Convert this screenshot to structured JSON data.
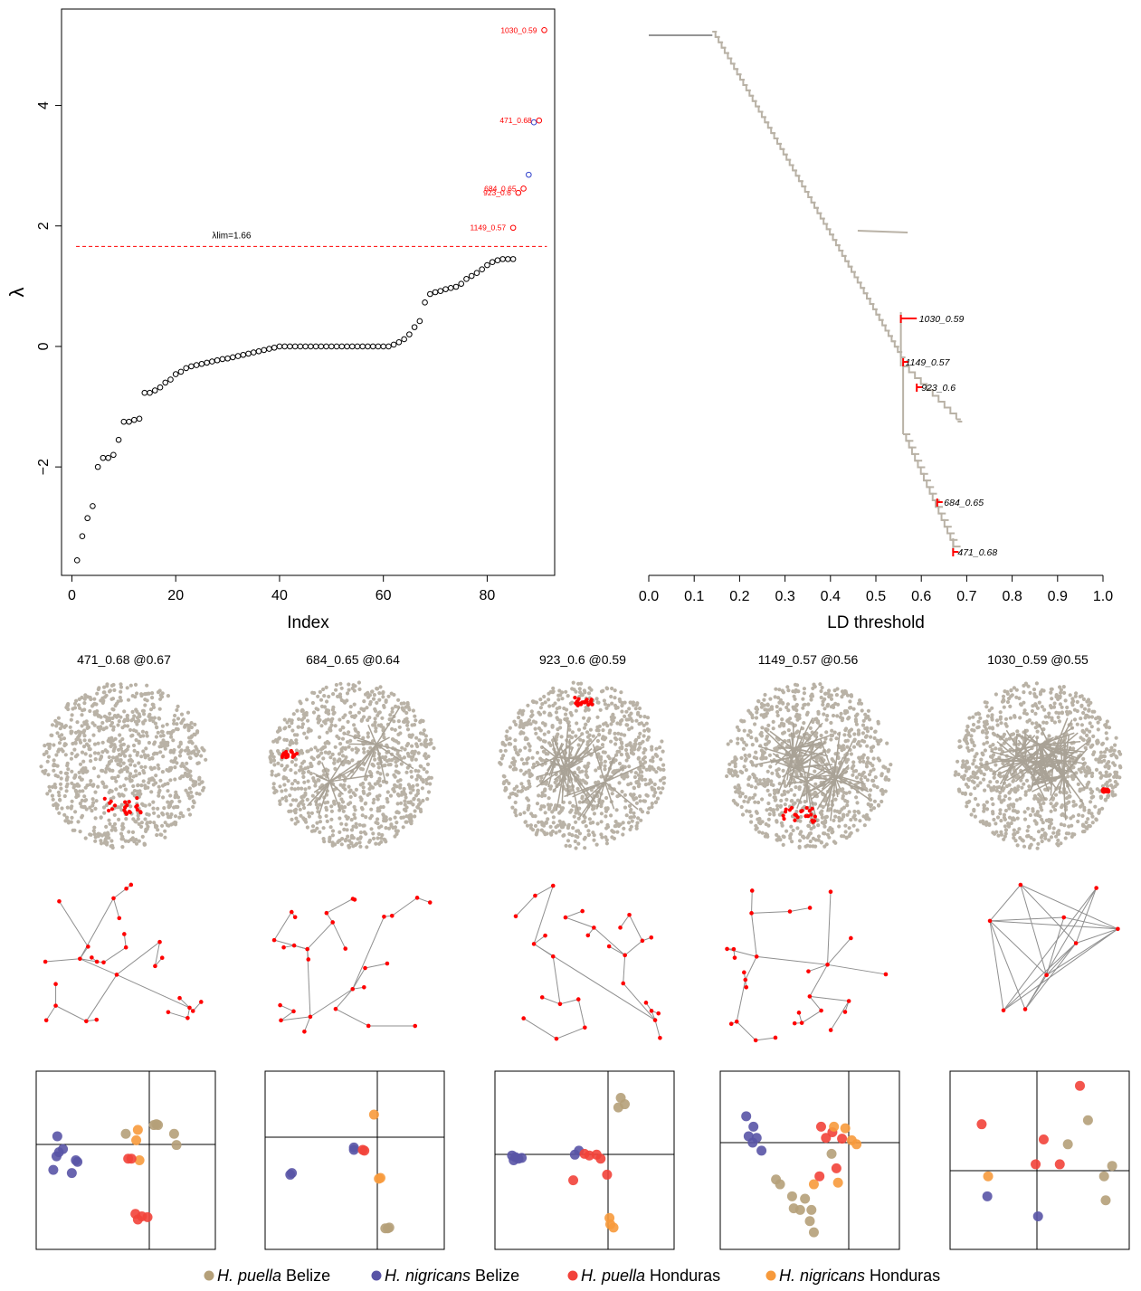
{
  "colors": {
    "point": "#000000",
    "highlight": "#ff0000",
    "secondary": "#3344cc",
    "tree": "#b9b2a6",
    "edge": "#8f8f8f",
    "puella_belize": "#b5a079",
    "nigricans_belize": "#5954a6",
    "puella_honduras": "#f2423a",
    "nigricans_honduras": "#f79a3c"
  },
  "legend": [
    {
      "species": "H. puella",
      "location": "Belize",
      "color_key": "puella_belize"
    },
    {
      "species": "H. nigricans",
      "location": "Belize",
      "color_key": "nigricans_belize"
    },
    {
      "species": "H. puella",
      "location": "Honduras",
      "color_key": "puella_honduras"
    },
    {
      "species": "H. nigricans",
      "location": "Honduras",
      "color_key": "nigricans_honduras"
    }
  ],
  "chart_data": [
    {
      "type": "scatter",
      "title": "",
      "xlabel": "Index",
      "ylabel": "λ",
      "xlim": [
        -2,
        93
      ],
      "ylim": [
        -3.8,
        5.6
      ],
      "xticks": [
        0,
        20,
        40,
        60,
        80
      ],
      "yticks": [
        -2,
        0,
        2,
        4
      ],
      "grid": false,
      "threshold": {
        "value": 1.66,
        "label": "λlim=1.66"
      },
      "values": [
        -3.55,
        -3.15,
        -2.85,
        -2.65,
        -2.0,
        -1.85,
        -1.85,
        -1.8,
        -1.55,
        -1.25,
        -1.25,
        -1.22,
        -1.2,
        -0.77,
        -0.77,
        -0.73,
        -0.68,
        -0.6,
        -0.55,
        -0.46,
        -0.42,
        -0.36,
        -0.33,
        -0.31,
        -0.29,
        -0.27,
        -0.25,
        -0.23,
        -0.21,
        -0.2,
        -0.18,
        -0.16,
        -0.14,
        -0.12,
        -0.1,
        -0.08,
        -0.06,
        -0.04,
        -0.02,
        0,
        0,
        0,
        0,
        0,
        0,
        0,
        0,
        0,
        0,
        0,
        0,
        0,
        0,
        0,
        0,
        0,
        0,
        0,
        0,
        0,
        0,
        0.03,
        0.07,
        0.12,
        0.2,
        0.32,
        0.42,
        0.73,
        0.87,
        0.9,
        0.92,
        0.95,
        0.97,
        0.99,
        1.04,
        1.12,
        1.17,
        1.22,
        1.28,
        1.35,
        1.4,
        1.43,
        1.45,
        1.45,
        1.45
      ],
      "labeled_points": [
        {
          "x": 85,
          "y": 1.97,
          "label": "1149_0.57"
        },
        {
          "x": 86,
          "y": 2.55,
          "label": "923_0.6"
        },
        {
          "x": 87,
          "y": 2.62,
          "label": "684_0.65"
        },
        {
          "x": 88,
          "y": 2.85,
          "label": ""
        },
        {
          "x": 89,
          "y": 3.72,
          "label": ""
        },
        {
          "x": 90,
          "y": 3.75,
          "label": "471_0.68"
        },
        {
          "x": 91,
          "y": 5.25,
          "label": "1030_0.59"
        }
      ]
    },
    {
      "type": "line",
      "title": "",
      "xlabel": "LD threshold",
      "ylabel": "",
      "xlim": [
        0,
        1
      ],
      "xticks": [
        "0.0",
        "0.1",
        "0.2",
        "0.3",
        "0.4",
        "0.5",
        "0.6",
        "0.7",
        "0.8",
        "0.9",
        "1.0"
      ],
      "grid": false,
      "trunk": {
        "start_x": 0.0,
        "split_x": 0.14,
        "end_x": 0.555
      },
      "branches": [
        {
          "x": 0.46,
          "end_x": 0.57,
          "label": ""
        },
        {
          "x": 0.555,
          "end_x": 0.59,
          "label": "1030_0.59",
          "highlight": true
        },
        {
          "x": 0.56,
          "end_x": 0.57,
          "label": "1149_0.57",
          "highlight": true
        },
        {
          "x": 0.59,
          "end_x": 0.6,
          "label": "923_0.6",
          "highlight": true
        },
        {
          "x": 0.635,
          "end_x": 0.65,
          "label": "684_0.65",
          "highlight": true
        },
        {
          "x": 0.67,
          "end_x": 0.68,
          "label": "471_0.68",
          "highlight": true
        }
      ]
    },
    {
      "type": "scatter",
      "panel_titles": [
        "471_0.68 @0.67",
        "684_0.65 @0.64",
        "923_0.6 @0.59",
        "1149_0.57 @0.56",
        "1030_0.59 @0.55"
      ],
      "pca_points": [
        [
          {
            "g": "nigricans_belize",
            "x": -0.85,
            "y": 0.3
          },
          {
            "g": "nigricans_belize",
            "x": -0.83,
            "y": 0.1
          },
          {
            "g": "nigricans_belize",
            "x": -0.86,
            "y": 0.05
          },
          {
            "g": "nigricans_belize",
            "x": -0.78,
            "y": 0.14
          },
          {
            "g": "nigricans_belize",
            "x": -0.9,
            "y": -0.12
          },
          {
            "g": "nigricans_belize",
            "x": -0.6,
            "y": -0.02
          },
          {
            "g": "nigricans_belize",
            "x": -0.62,
            "y": 0.0
          },
          {
            "g": "nigricans_belize",
            "x": -0.67,
            "y": -0.16
          },
          {
            "g": "puella_belize",
            "x": 0.35,
            "y": 0.44
          },
          {
            "g": "puella_belize",
            "x": 0.38,
            "y": 0.45
          },
          {
            "g": "puella_belize",
            "x": 0.4,
            "y": 0.44
          },
          {
            "g": "puella_belize",
            "x": 0.6,
            "y": 0.33
          },
          {
            "g": "puella_belize",
            "x": 0.63,
            "y": 0.19
          },
          {
            "g": "puella_belize",
            "x": 0.0,
            "y": 0.33
          },
          {
            "g": "nigricans_honduras",
            "x": 0.15,
            "y": 0.38
          },
          {
            "g": "nigricans_honduras",
            "x": 0.17,
            "y": 0.0
          },
          {
            "g": "nigricans_honduras",
            "x": 0.13,
            "y": 0.25
          },
          {
            "g": "puella_honduras",
            "x": 0.03,
            "y": 0.02
          },
          {
            "g": "puella_honduras",
            "x": 0.07,
            "y": 0.02
          },
          {
            "g": "puella_honduras",
            "x": 0.12,
            "y": -0.67
          },
          {
            "g": "puella_honduras",
            "x": 0.2,
            "y": -0.7
          },
          {
            "g": "puella_honduras",
            "x": 0.27,
            "y": -0.71
          },
          {
            "g": "puella_honduras",
            "x": 0.15,
            "y": -0.74
          }
        ],
        [
          {
            "g": "nigricans_belize",
            "x": -0.8,
            "y": -0.18
          },
          {
            "g": "nigricans_belize",
            "x": -0.78,
            "y": -0.16
          },
          {
            "g": "nigricans_belize",
            "x": -0.01,
            "y": 0.16
          },
          {
            "g": "nigricans_belize",
            "x": -0.01,
            "y": 0.13
          },
          {
            "g": "nigricans_honduras",
            "x": 0.24,
            "y": 0.57
          },
          {
            "g": "nigricans_honduras",
            "x": 0.32,
            "y": -0.22
          },
          {
            "g": "nigricans_honduras",
            "x": 0.3,
            "y": -0.23
          },
          {
            "g": "puella_honduras",
            "x": 0.1,
            "y": 0.13
          },
          {
            "g": "puella_honduras",
            "x": 0.12,
            "y": 0.12
          },
          {
            "g": "puella_belize",
            "x": 0.38,
            "y": -0.85
          },
          {
            "g": "puella_belize",
            "x": 0.43,
            "y": -0.84
          },
          {
            "g": "puella_belize",
            "x": 0.41,
            "y": -0.85
          }
        ],
        [
          {
            "g": "nigricans_belize",
            "x": -0.9,
            "y": 0.06
          },
          {
            "g": "nigricans_belize",
            "x": -0.86,
            "y": 0.04
          },
          {
            "g": "nigricans_belize",
            "x": -0.82,
            "y": 0.02
          },
          {
            "g": "nigricans_belize",
            "x": -0.78,
            "y": 0.03
          },
          {
            "g": "nigricans_belize",
            "x": -0.88,
            "y": 0.0
          },
          {
            "g": "nigricans_belize",
            "x": -0.07,
            "y": 0.12
          },
          {
            "g": "nigricans_belize",
            "x": -0.12,
            "y": 0.07
          },
          {
            "g": "puella_belize",
            "x": 0.45,
            "y": 0.78
          },
          {
            "g": "puella_belize",
            "x": 0.5,
            "y": 0.7
          },
          {
            "g": "puella_belize",
            "x": 0.42,
            "y": 0.66
          },
          {
            "g": "puella_honduras",
            "x": 0.0,
            "y": 0.08
          },
          {
            "g": "puella_honduras",
            "x": 0.06,
            "y": 0.06
          },
          {
            "g": "puella_honduras",
            "x": 0.15,
            "y": 0.07
          },
          {
            "g": "puella_honduras",
            "x": 0.2,
            "y": 0.02
          },
          {
            "g": "puella_honduras",
            "x": -0.14,
            "y": -0.25
          },
          {
            "g": "puella_honduras",
            "x": 0.28,
            "y": -0.18
          },
          {
            "g": "nigricans_honduras",
            "x": 0.31,
            "y": -0.72
          },
          {
            "g": "nigricans_honduras",
            "x": 0.36,
            "y": -0.84
          },
          {
            "g": "nigricans_honduras",
            "x": 0.32,
            "y": -0.8
          }
        ],
        [
          {
            "g": "nigricans_belize",
            "x": -0.79,
            "y": 0.55
          },
          {
            "g": "nigricans_belize",
            "x": -0.7,
            "y": 0.42
          },
          {
            "g": "nigricans_belize",
            "x": -0.76,
            "y": 0.3
          },
          {
            "g": "nigricans_belize",
            "x": -0.66,
            "y": 0.28
          },
          {
            "g": "nigricans_belize",
            "x": -0.71,
            "y": 0.22
          },
          {
            "g": "nigricans_belize",
            "x": -0.6,
            "y": 0.12
          },
          {
            "g": "puella_belize",
            "x": 0.27,
            "y": 0.08
          },
          {
            "g": "puella_belize",
            "x": -0.42,
            "y": -0.24
          },
          {
            "g": "puella_belize",
            "x": -0.37,
            "y": -0.3
          },
          {
            "g": "puella_belize",
            "x": -0.22,
            "y": -0.45
          },
          {
            "g": "puella_belize",
            "x": -0.2,
            "y": -0.6
          },
          {
            "g": "puella_belize",
            "x": -0.12,
            "y": -0.62
          },
          {
            "g": "puella_belize",
            "x": -0.06,
            "y": -0.48
          },
          {
            "g": "puella_belize",
            "x": 0.02,
            "y": -0.62
          },
          {
            "g": "puella_belize",
            "x": 0.0,
            "y": -0.76
          },
          {
            "g": "puella_belize",
            "x": 0.05,
            "y": -0.9
          },
          {
            "g": "puella_honduras",
            "x": 0.14,
            "y": 0.42
          },
          {
            "g": "puella_honduras",
            "x": 0.2,
            "y": 0.28
          },
          {
            "g": "puella_honduras",
            "x": 0.28,
            "y": 0.35
          },
          {
            "g": "puella_honduras",
            "x": 0.4,
            "y": 0.27
          },
          {
            "g": "puella_honduras",
            "x": 0.33,
            "y": -0.1
          },
          {
            "g": "puella_honduras",
            "x": 0.12,
            "y": -0.2
          },
          {
            "g": "nigricans_honduras",
            "x": 0.3,
            "y": 0.42
          },
          {
            "g": "nigricans_honduras",
            "x": 0.44,
            "y": 0.4
          },
          {
            "g": "nigricans_honduras",
            "x": 0.52,
            "y": 0.25
          },
          {
            "g": "nigricans_honduras",
            "x": 0.58,
            "y": 0.2
          },
          {
            "g": "nigricans_honduras",
            "x": 0.35,
            "y": -0.28
          },
          {
            "g": "nigricans_honduras",
            "x": 0.05,
            "y": -0.3
          }
        ],
        [
          {
            "g": "puella_honduras",
            "x": 0.5,
            "y": 0.93
          },
          {
            "g": "puella_honduras",
            "x": -0.72,
            "y": 0.45
          },
          {
            "g": "puella_honduras",
            "x": 0.05,
            "y": 0.26
          },
          {
            "g": "puella_honduras",
            "x": -0.05,
            "y": -0.05
          },
          {
            "g": "puella_honduras",
            "x": 0.25,
            "y": -0.05
          },
          {
            "g": "puella_belize",
            "x": 0.6,
            "y": 0.5
          },
          {
            "g": "puella_belize",
            "x": 0.35,
            "y": 0.2
          },
          {
            "g": "puella_belize",
            "x": 0.9,
            "y": -0.07
          },
          {
            "g": "puella_belize",
            "x": 0.8,
            "y": -0.2
          },
          {
            "g": "puella_belize",
            "x": 0.82,
            "y": -0.5
          },
          {
            "g": "nigricans_honduras",
            "x": -0.64,
            "y": -0.2
          },
          {
            "g": "nigricans_belize",
            "x": -0.65,
            "y": -0.45
          },
          {
            "g": "nigricans_belize",
            "x": -0.02,
            "y": -0.7
          }
        ]
      ]
    }
  ]
}
